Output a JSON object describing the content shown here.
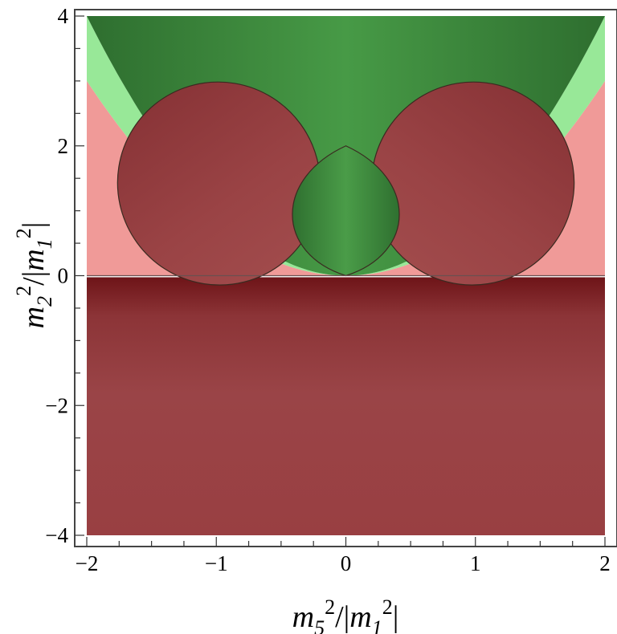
{
  "chart_data": {
    "type": "area",
    "title": "",
    "xlabel": "m5^2/|m1^2|",
    "ylabel": "m2^2/|m1^2|",
    "xlim": [
      -2,
      2
    ],
    "ylim": [
      -4,
      4
    ],
    "x_ticks": [
      -2,
      -1,
      0,
      1,
      2
    ],
    "y_ticks": [
      -4,
      -2,
      0,
      2,
      4
    ],
    "x_tick_labels": [
      "−2",
      "−1",
      "0",
      "1",
      "2"
    ],
    "y_tick_labels": [
      "−4",
      "−2",
      "0",
      "2",
      "4"
    ],
    "grid": false,
    "legend": "none",
    "colors": {
      "green_region": "#3f8f3f",
      "green_dark": "#2f6f30",
      "light_green_region": "#98e898",
      "pink_region": "#f09a98",
      "dark_red_region": "#984446",
      "dark_red_edge": "#7a1f22"
    },
    "regions": [
      {
        "id": "upper_green",
        "desc_boundary": "above y = x^2 for |x| <= 2, up to y = 4"
      },
      {
        "id": "light_green_wedges",
        "between": "y = 0.75*x^2 and y = x^2"
      },
      {
        "id": "pink",
        "between": "y = 0 and y = 0.75*x^2"
      },
      {
        "id": "lower_red",
        "between": "y = -4 and y = 0"
      },
      {
        "id": "lobes",
        "shape": "two ellipses through (0,0), (0,2), peak y = 3 at x = ±1"
      },
      {
        "id": "lens",
        "shape": "green lens between x = -0.36 and x = 0.36, y from 0 to 2"
      }
    ]
  }
}
